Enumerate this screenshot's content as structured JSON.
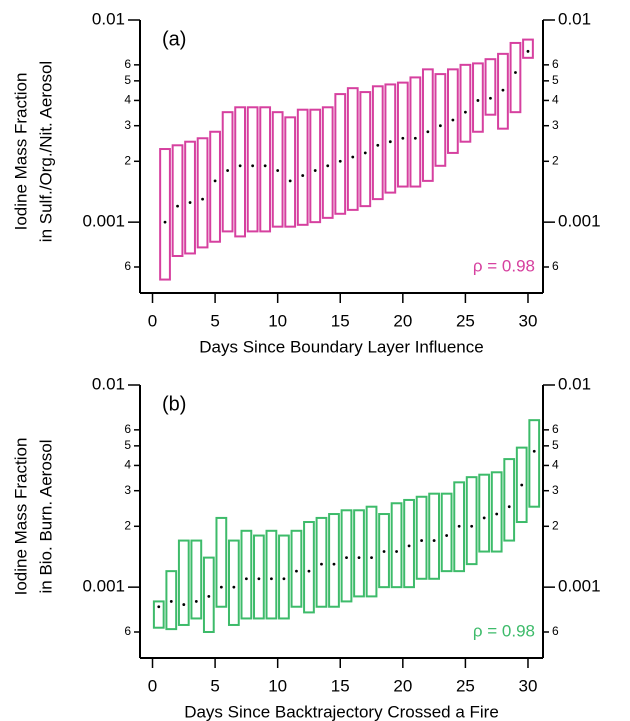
{
  "chart_data": [
    {
      "type": "box",
      "panel_label": "(a)",
      "x_label": "Days Since Boundary Layer Influence",
      "y_label": [
        "Iodine Mass Fraction",
        "in Sulf./Org./Nit. Aerosol"
      ],
      "annotation": "ρ = 0.98",
      "color": "#d6409f",
      "log_y": true,
      "xlim": [
        -1,
        31.2
      ],
      "xticks": [
        0,
        5,
        10,
        15,
        20,
        25,
        30
      ],
      "ylim": [
        0.0005,
        0.01
      ],
      "yticks": [
        {
          "value": 0.0006,
          "label": "6"
        },
        0.001,
        {
          "value": 0.002,
          "label": "2"
        },
        {
          "value": 0.003,
          "label": "3"
        },
        {
          "value": 0.004,
          "label": "4"
        },
        {
          "value": 0.005,
          "label": "5"
        },
        {
          "value": 0.006,
          "label": "6"
        },
        0.01
      ],
      "x": [
        1,
        2,
        3,
        4,
        5,
        6,
        7,
        8,
        9,
        10,
        11,
        12,
        13,
        14,
        15,
        16,
        17,
        18,
        19,
        20,
        21,
        22,
        23,
        24,
        25,
        26,
        27,
        28,
        29,
        30
      ],
      "upper": [
        0.0023,
        0.0024,
        0.0025,
        0.0026,
        0.0028,
        0.0035,
        0.0037,
        0.0037,
        0.0037,
        0.0035,
        0.0033,
        0.0036,
        0.0036,
        0.0037,
        0.0043,
        0.0046,
        0.0044,
        0.0047,
        0.0048,
        0.0049,
        0.0052,
        0.0057,
        0.0054,
        0.0057,
        0.006,
        0.0061,
        0.0064,
        0.0068,
        0.0077,
        0.008
      ],
      "lower": [
        0.00052,
        0.00068,
        0.0007,
        0.00075,
        0.0008,
        0.0009,
        0.00085,
        0.0009,
        0.0009,
        0.00095,
        0.00095,
        0.00097,
        0.001,
        0.00105,
        0.0011,
        0.00115,
        0.0012,
        0.0013,
        0.0014,
        0.0015,
        0.0015,
        0.0016,
        0.0019,
        0.0022,
        0.0025,
        0.0028,
        0.0034,
        0.0029,
        0.0035,
        0.0065
      ],
      "median": [
        0.001,
        0.0012,
        0.00125,
        0.0013,
        0.0016,
        0.0018,
        0.0019,
        0.0019,
        0.0019,
        0.0018,
        0.0016,
        0.0017,
        0.0018,
        0.0019,
        0.002,
        0.0021,
        0.0022,
        0.0024,
        0.0025,
        0.0026,
        0.0026,
        0.0028,
        0.003,
        0.0032,
        0.0035,
        0.004,
        0.0041,
        0.0045,
        0.0055,
        0.007
      ]
    },
    {
      "type": "box",
      "panel_label": "(b)",
      "x_label": "Days Since Backtrajectory Crossed a Fire",
      "y_label": [
        "Iodine Mass Fraction",
        "in Bio. Burn. Aerosol"
      ],
      "annotation": "ρ = 0.98",
      "color": "#3dbb6a",
      "log_y": true,
      "xlim": [
        -1,
        31.2
      ],
      "xticks": [
        0,
        5,
        10,
        15,
        20,
        25,
        30
      ],
      "ylim": [
        0.0005,
        0.01
      ],
      "yticks": [
        {
          "value": 0.0006,
          "label": "6"
        },
        0.001,
        {
          "value": 0.002,
          "label": "2"
        },
        {
          "value": 0.003,
          "label": "3"
        },
        {
          "value": 0.004,
          "label": "4"
        },
        {
          "value": 0.005,
          "label": "5"
        },
        {
          "value": 0.006,
          "label": "6"
        },
        0.01
      ],
      "x": [
        0.5,
        1.5,
        2.5,
        3.5,
        4.5,
        5.5,
        6.5,
        7.5,
        8.5,
        9.5,
        10.5,
        11.5,
        12.5,
        13.5,
        14.5,
        15.5,
        16.5,
        17.5,
        18.5,
        19.5,
        20.5,
        21.5,
        22.5,
        23.5,
        24.5,
        25.5,
        26.5,
        27.5,
        28.5,
        29.5,
        30.5
      ],
      "upper": [
        0.00085,
        0.0012,
        0.0017,
        0.0017,
        0.0014,
        0.0022,
        0.0017,
        0.0019,
        0.0018,
        0.0019,
        0.0018,
        0.0019,
        0.0021,
        0.0022,
        0.0023,
        0.0024,
        0.0024,
        0.0025,
        0.0023,
        0.0026,
        0.0027,
        0.0028,
        0.0029,
        0.0029,
        0.0033,
        0.0035,
        0.0036,
        0.0037,
        0.0043,
        0.0049,
        0.0067
      ],
      "lower": [
        0.00063,
        0.00062,
        0.00065,
        0.0007,
        0.0006,
        0.0008,
        0.00065,
        0.0007,
        0.0007,
        0.0007,
        0.0007,
        0.0008,
        0.00075,
        0.0008,
        0.0008,
        0.00085,
        0.0009,
        0.0009,
        0.001,
        0.001,
        0.001,
        0.0011,
        0.0011,
        0.0012,
        0.0012,
        0.0013,
        0.0015,
        0.0015,
        0.0017,
        0.0021,
        0.0025
      ],
      "median": [
        0.0008,
        0.00085,
        0.00082,
        0.00085,
        0.0009,
        0.001,
        0.001,
        0.0011,
        0.0011,
        0.0011,
        0.0011,
        0.0012,
        0.0012,
        0.0013,
        0.0013,
        0.0014,
        0.0014,
        0.0014,
        0.0015,
        0.0015,
        0.0016,
        0.0017,
        0.0017,
        0.0018,
        0.002,
        0.002,
        0.0022,
        0.0023,
        0.0025,
        0.0032,
        0.0047
      ]
    }
  ]
}
